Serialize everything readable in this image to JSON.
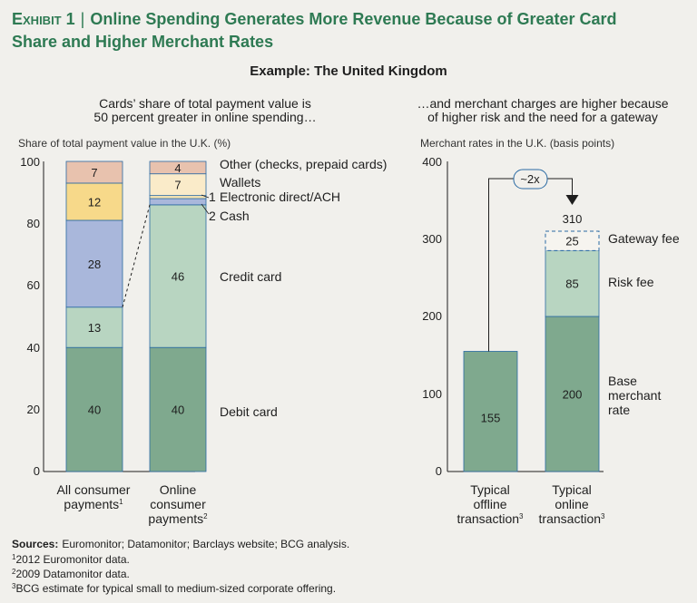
{
  "exhibit": {
    "label": "Exhibit 1",
    "separator": "|",
    "title_line1": "Online Spending Generates More Revenue Because of Greater Card",
    "title_line2": "Share and Higher Merchant Rates"
  },
  "subtitle": "Example: The United Kingdom",
  "colors": {
    "title": "#2e7a53",
    "debit": "#7fa98e",
    "credit": "#b8d5c1",
    "cash": "#a9b7db",
    "ach": "#f4e3b2",
    "wallets": "#faebc9",
    "other": "#e8c2ae",
    "consumer_credit": "#a9b7db",
    "consumer_ach": "#f7d98a",
    "base": "#7fa98e",
    "risk": "#b8d5c1",
    "gateway": "#f6f4ef",
    "stroke": "#2a6aa3"
  },
  "chart_data": [
    {
      "type": "bar",
      "stacked": true,
      "caption_line1": "Cards’ share of total payment value is",
      "caption_line2": "50 percent greater in online spending…",
      "ylabel": "Share of total payment value in the U.K. (%)",
      "ylim": [
        0,
        100
      ],
      "yticks": [
        "0",
        "20",
        "40",
        "60",
        "80",
        "100"
      ],
      "categories": [
        {
          "line1": "All consumer",
          "line2": "payments",
          "sup": "1"
        },
        {
          "line1": "Online",
          "line2": "consumer",
          "line3": "payments",
          "sup": "2"
        }
      ],
      "series": [
        {
          "name": "Debit card",
          "values": [
            40,
            40
          ]
        },
        {
          "name": "Credit card",
          "values": [
            13,
            46
          ]
        },
        {
          "name": "Cash",
          "values": [
            28,
            2
          ]
        },
        {
          "name": "Electronic direct/ACH",
          "values": [
            12,
            1
          ]
        },
        {
          "name": "Wallets",
          "values": [
            0,
            7
          ]
        },
        {
          "name": "Other (checks, prepaid cards)",
          "values": [
            7,
            4
          ]
        }
      ],
      "small_labels": {
        "cash": "2",
        "ach": "1"
      }
    },
    {
      "type": "bar",
      "stacked": true,
      "caption_line1": "…and merchant charges are higher because",
      "caption_line2": "of higher risk and the need for a gateway",
      "ylabel": "Merchant rates in the U.K. (basis points)",
      "ylim": [
        0,
        400
      ],
      "yticks": [
        "0",
        "100",
        "200",
        "300",
        "400"
      ],
      "categories": [
        {
          "line1": "Typical",
          "line2": "offline",
          "line3": "transaction",
          "sup": "3"
        },
        {
          "line1": "Typical",
          "line2": "online",
          "line3": "transaction",
          "sup": "3"
        }
      ],
      "series": [
        {
          "name": "Base merchant rate",
          "label_lines": [
            "Base",
            "merchant",
            "rate"
          ],
          "values": [
            155,
            200
          ]
        },
        {
          "name": "Risk fee",
          "values": [
            0,
            85
          ]
        },
        {
          "name": "Gateway fee",
          "values": [
            0,
            25
          ]
        }
      ],
      "total_online": 310,
      "multiplier": "~2x"
    }
  ],
  "footer": {
    "sources_label": "Sources:",
    "sources_text": "Euromonitor; Datamonitor; Barclays website; BCG analysis.",
    "note1_sup": "1",
    "note1": "2012 Euromonitor data.",
    "note2_sup": "2",
    "note2": "2009 Datamonitor data.",
    "note3_sup": "3",
    "note3": "BCG estimate for typical small to medium-sized corporate offering."
  }
}
